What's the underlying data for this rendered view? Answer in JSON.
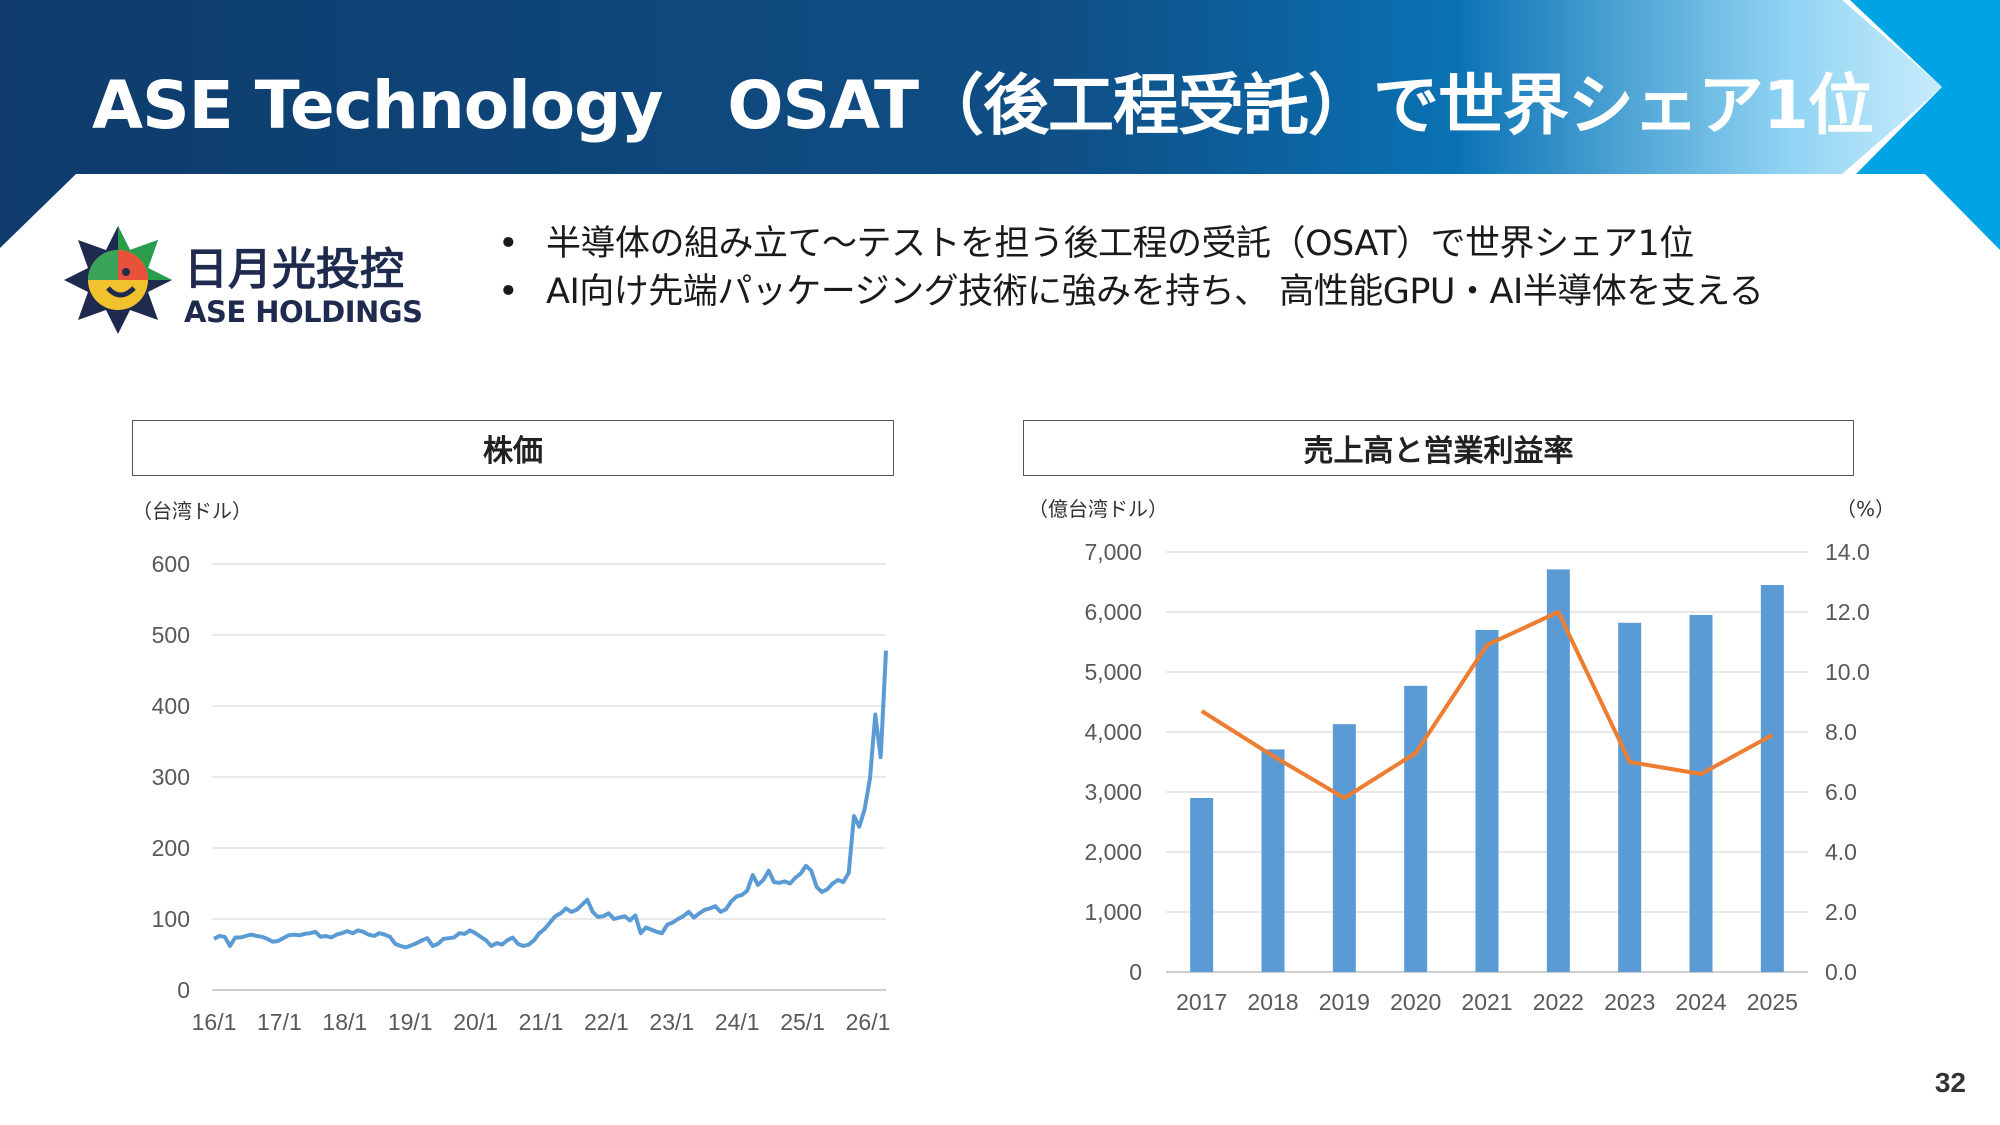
{
  "header": {
    "title": "ASE Technology　OSAT（後工程受託）で世界シェア1位",
    "colors": {
      "dark": "#0e3b6b",
      "mid": "#0a6aa8",
      "light": "#54bfee",
      "accent": "#00a4e4"
    }
  },
  "company": {
    "logo_name_ja": "日月光投控",
    "logo_name_en": "ASE HOLDINGS"
  },
  "bullets": [
    "半導体の組み立て～テストを担う後工程の受託（OSAT）で世界シェア1位",
    "AI向け先端パッケージング技術に強みを持ち、 高性能GPU・AI半導体を支える"
  ],
  "page_number": "32",
  "chart_data": [
    {
      "type": "line",
      "title": "株価",
      "ylabel": "（台湾ドル）",
      "ylim": [
        0,
        600
      ],
      "yticks": [
        "0",
        "100",
        "200",
        "300",
        "400",
        "500",
        "600"
      ],
      "xticks": [
        "16/1",
        "17/1",
        "18/1",
        "19/1",
        "20/1",
        "21/1",
        "22/1",
        "23/1",
        "24/1",
        "25/1",
        "26/1"
      ],
      "color": "#5b9bd5",
      "series": [
        {
          "x_start": "16/1",
          "x_end": "26/1",
          "values": [
            72,
            76,
            75,
            62,
            74,
            74,
            76,
            78,
            76,
            75,
            72,
            68,
            69,
            73,
            77,
            78,
            77,
            79,
            80,
            82,
            75,
            76,
            74,
            78,
            80,
            83,
            80,
            84,
            82,
            78,
            76,
            80,
            78,
            75,
            65,
            62,
            60,
            63,
            66,
            70,
            73,
            62,
            65,
            72,
            73,
            74,
            80,
            79,
            84,
            80,
            75,
            70,
            62,
            66,
            64,
            70,
            74,
            65,
            62,
            64,
            70,
            80,
            86,
            95,
            104,
            108,
            115,
            110,
            113,
            120,
            127,
            110,
            103,
            104,
            108,
            100,
            102,
            104,
            98,
            105,
            80,
            88,
            85,
            82,
            80,
            92,
            95,
            100,
            104,
            110,
            102,
            108,
            113,
            115,
            118,
            110,
            114,
            125,
            132,
            134,
            140,
            162,
            148,
            155,
            168,
            152,
            151,
            153,
            150,
            158,
            164,
            175,
            168,
            145,
            138,
            142,
            150,
            155,
            152,
            165,
            245,
            230,
            255,
            298,
            388,
            328,
            478
          ]
        }
      ]
    },
    {
      "type": "bar",
      "title": "売上高と営業利益率",
      "ylabel": "（億台湾ドル）",
      "y2label": "（%）",
      "categories": [
        "2017",
        "2018",
        "2019",
        "2020",
        "2021",
        "2022",
        "2023",
        "2024",
        "2025"
      ],
      "ylim": [
        0,
        7000
      ],
      "yticks": [
        "0",
        "1,000",
        "2,000",
        "3,000",
        "4,000",
        "5,000",
        "6,000",
        "7,000"
      ],
      "y2lim": [
        0,
        14
      ],
      "y2ticks": [
        "0.0",
        "2.0",
        "4.0",
        "6.0",
        "8.0",
        "10.0",
        "12.0",
        "14.0"
      ],
      "series": [
        {
          "type": "bar",
          "axis": "left",
          "color": "#5b9bd5",
          "values": [
            2900,
            3710,
            4130,
            4770,
            5700,
            6710,
            5820,
            5950,
            6450
          ]
        },
        {
          "type": "line",
          "axis": "right",
          "color": "#ed7d31",
          "values": [
            8.7,
            7.2,
            5.8,
            7.3,
            10.9,
            12.0,
            7.0,
            6.6,
            7.9
          ]
        }
      ]
    }
  ]
}
